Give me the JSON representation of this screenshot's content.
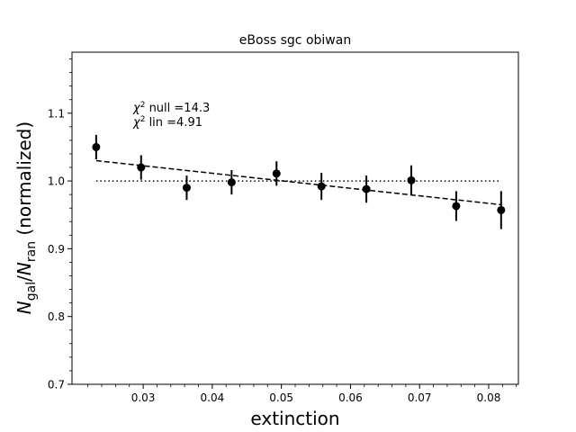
{
  "chart_data": {
    "type": "scatter",
    "title": "eBoss sgc obiwan",
    "xlabel": "extinction",
    "ylabel_main": "N",
    "ylabel_sub1": "gal",
    "ylabel_slash": "/",
    "ylabel_main2": "N",
    "ylabel_sub2": "ran",
    "ylabel_suffix": " (normalized)",
    "xlim": [
      0.0197,
      0.0843
    ],
    "ylim": [
      0.7,
      1.19
    ],
    "xticks": [
      0.03,
      0.04,
      0.05,
      0.06,
      0.07,
      0.08
    ],
    "xtick_labels": [
      "0.03",
      "0.04",
      "0.05",
      "0.06",
      "0.07",
      "0.08"
    ],
    "yticks": [
      0.7,
      0.8,
      0.9,
      1.0,
      1.1
    ],
    "ytick_labels": [
      "0.7",
      "0.8",
      "0.9",
      "1.0",
      "1.1"
    ],
    "points": [
      {
        "x": 0.0232,
        "y": 1.05,
        "err": 0.018
      },
      {
        "x": 0.0297,
        "y": 1.02,
        "err": 0.018
      },
      {
        "x": 0.0363,
        "y": 0.99,
        "err": 0.018
      },
      {
        "x": 0.0428,
        "y": 0.998,
        "err": 0.018
      },
      {
        "x": 0.0493,
        "y": 1.011,
        "err": 0.018
      },
      {
        "x": 0.0558,
        "y": 0.992,
        "err": 0.02
      },
      {
        "x": 0.0623,
        "y": 0.988,
        "err": 0.02
      },
      {
        "x": 0.0688,
        "y": 1.001,
        "err": 0.022
      },
      {
        "x": 0.0753,
        "y": 0.963,
        "err": 0.022
      },
      {
        "x": 0.0818,
        "y": 0.957,
        "err": 0.028
      }
    ],
    "null_line": {
      "y": 1.0,
      "x": [
        0.0232,
        0.0818
      ],
      "style": "dotted"
    },
    "fit_line": {
      "x": [
        0.0232,
        0.0818
      ],
      "y": [
        1.03,
        0.965
      ],
      "style": "dashed"
    },
    "annotations": [
      {
        "chi": "χ",
        "sup": "2",
        "label": " null =14.3"
      },
      {
        "chi": "χ",
        "sup": "2",
        "label": " lin =4.91"
      }
    ],
    "grid": false,
    "legend": "none"
  }
}
